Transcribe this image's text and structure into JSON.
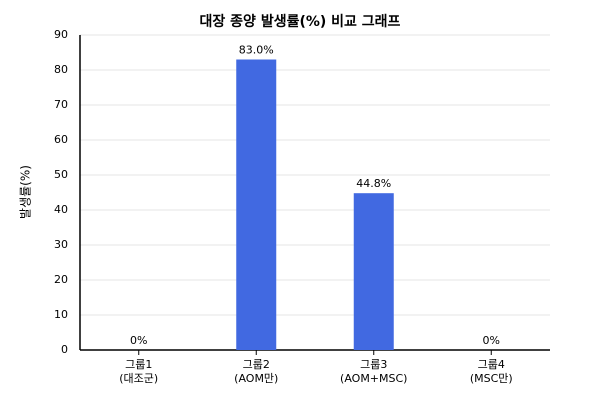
{
  "chart_data": {
    "type": "bar",
    "title": "대장 종양 발생률(%) 비교 그래프",
    "y_label": "발생률(%)",
    "categories": [
      "그룹1\n(대조군)",
      "그룹2\n(AOM만)",
      "그룹3\n(AOM+MSC)",
      "그룹4\n(MSC만)"
    ],
    "values": [
      0,
      83.0,
      44.8,
      0
    ],
    "value_labels": [
      "0%",
      "83.0%",
      "44.8%",
      "0%"
    ],
    "color": "#4169e1",
    "ylim": [
      0,
      90
    ],
    "yticks": [
      0,
      10,
      20,
      30,
      40,
      50,
      60,
      70,
      80,
      90
    ],
    "grid": true
  }
}
